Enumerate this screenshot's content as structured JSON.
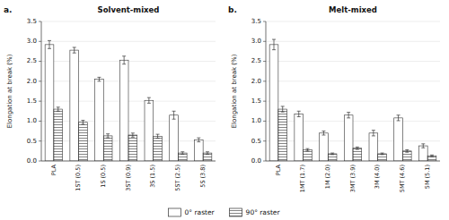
{
  "chart_data": [
    {
      "type": "bar",
      "title": "Solvent-mixed",
      "annotation": "a.",
      "ylabel": "Elongation at break (%)",
      "categories": [
        "PLA",
        "1ST (0.5)",
        "1S (0.5)",
        "3ST (0.9)",
        "3S (1.5)",
        "5ST (2.5)",
        "5S (3.8)"
      ],
      "series": [
        {
          "name": "0° raster",
          "color": "#ffffff",
          "values": [
            2.92,
            2.78,
            2.05,
            2.53,
            1.52,
            1.15,
            0.53
          ],
          "errors": [
            0.1,
            0.07,
            0.05,
            0.1,
            0.07,
            0.1,
            0.05
          ]
        },
        {
          "name": "90° raster",
          "color": "#ffffff",
          "values": [
            1.3,
            0.97,
            0.63,
            0.65,
            0.62,
            0.2,
            0.2
          ],
          "errors": [
            0.05,
            0.05,
            0.05,
            0.05,
            0.05,
            0.03,
            0.03
          ]
        }
      ],
      "ylim": [
        0,
        3.5
      ],
      "yticks": [
        {
          "value": 0,
          "label": "0.0"
        },
        0.5,
        {
          "value": 1,
          "label": "1.0"
        },
        1.5,
        {
          "value": 2,
          "label": "2.0"
        },
        2.5,
        {
          "value": 3,
          "label": "3.0"
        },
        3.5
      ],
      "grid": true,
      "legend": "bottom"
    },
    {
      "type": "bar",
      "title": "Melt-mixed",
      "annotation": "b.",
      "ylabel": "Elongation at break (%)",
      "categories": [
        "PLA",
        "1MT (1.7)",
        "1M (2.0)",
        "3MT (3.9)",
        "3M (4.0)",
        "5MT (4.6)",
        "5M (5.1)"
      ],
      "series": [
        {
          "name": "0° raster",
          "color": "#ffffff",
          "values": [
            2.92,
            1.18,
            0.7,
            1.15,
            0.7,
            1.08,
            0.38
          ],
          "errors": [
            0.13,
            0.07,
            0.05,
            0.07,
            0.07,
            0.07,
            0.05
          ]
        },
        {
          "name": "90° raster",
          "color": "#ffffff",
          "values": [
            1.3,
            0.28,
            0.18,
            0.32,
            0.18,
            0.25,
            0.13
          ],
          "errors": [
            0.07,
            0.03,
            0.02,
            0.03,
            0.02,
            0.03,
            0.02
          ]
        }
      ],
      "ylim": [
        0,
        3.5
      ],
      "yticks": [
        {
          "value": 0,
          "label": "0.0"
        },
        0.5,
        {
          "value": 1,
          "label": "1.0"
        },
        1.5,
        {
          "value": 2,
          "label": "2.0"
        },
        2.5,
        {
          "value": 3,
          "label": "3.0"
        },
        3.5
      ],
      "grid": true
    }
  ]
}
